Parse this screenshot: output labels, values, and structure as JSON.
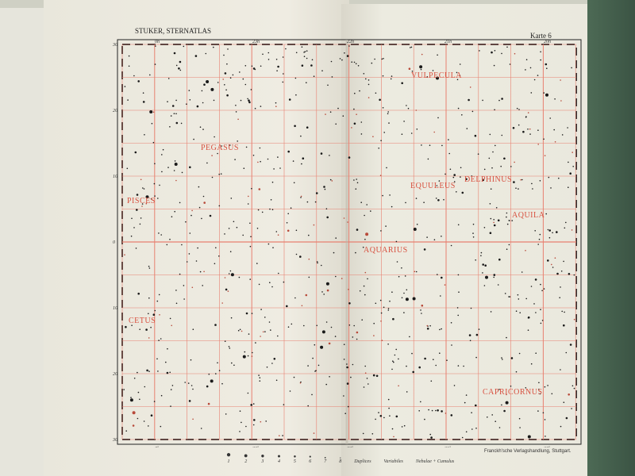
{
  "header": {
    "left_title": "STUKER, STERNATLAS",
    "right_title": "Karte 6"
  },
  "ra_labels_top": [
    "0h",
    "23h",
    "22h",
    "21h",
    "20h"
  ],
  "ra_labels_bottom": [
    "0h",
    "23h",
    "22h",
    "21h",
    "20h"
  ],
  "dec_labels": [
    "30",
    "20",
    "10",
    "0",
    "10",
    "20",
    "30"
  ],
  "constellations": [
    {
      "name": "VULPECULA"
    },
    {
      "name": "PEGASUS"
    },
    {
      "name": "EQUULEUS"
    },
    {
      "name": "DELPHINUS"
    },
    {
      "name": "PISCES"
    },
    {
      "name": "AQUILA"
    },
    {
      "name": "AQUARIUS"
    },
    {
      "name": "CETUS"
    },
    {
      "name": "CAPRICORNUS"
    }
  ],
  "legend": {
    "magnitudes": [
      "1",
      "2",
      "3",
      "4",
      "5",
      "6",
      "7",
      "8"
    ],
    "duplices": "Duplices",
    "variabiles": "Variabiles",
    "nebulae": "Nebulae + Cumulus"
  },
  "publisher": "Franckh'sche Verlagshandlung, Stuttgart.",
  "colors": {
    "grid": "#e88070",
    "labels": "#d8503f",
    "paper": "#ecebe0",
    "table": "#3f5a48"
  }
}
